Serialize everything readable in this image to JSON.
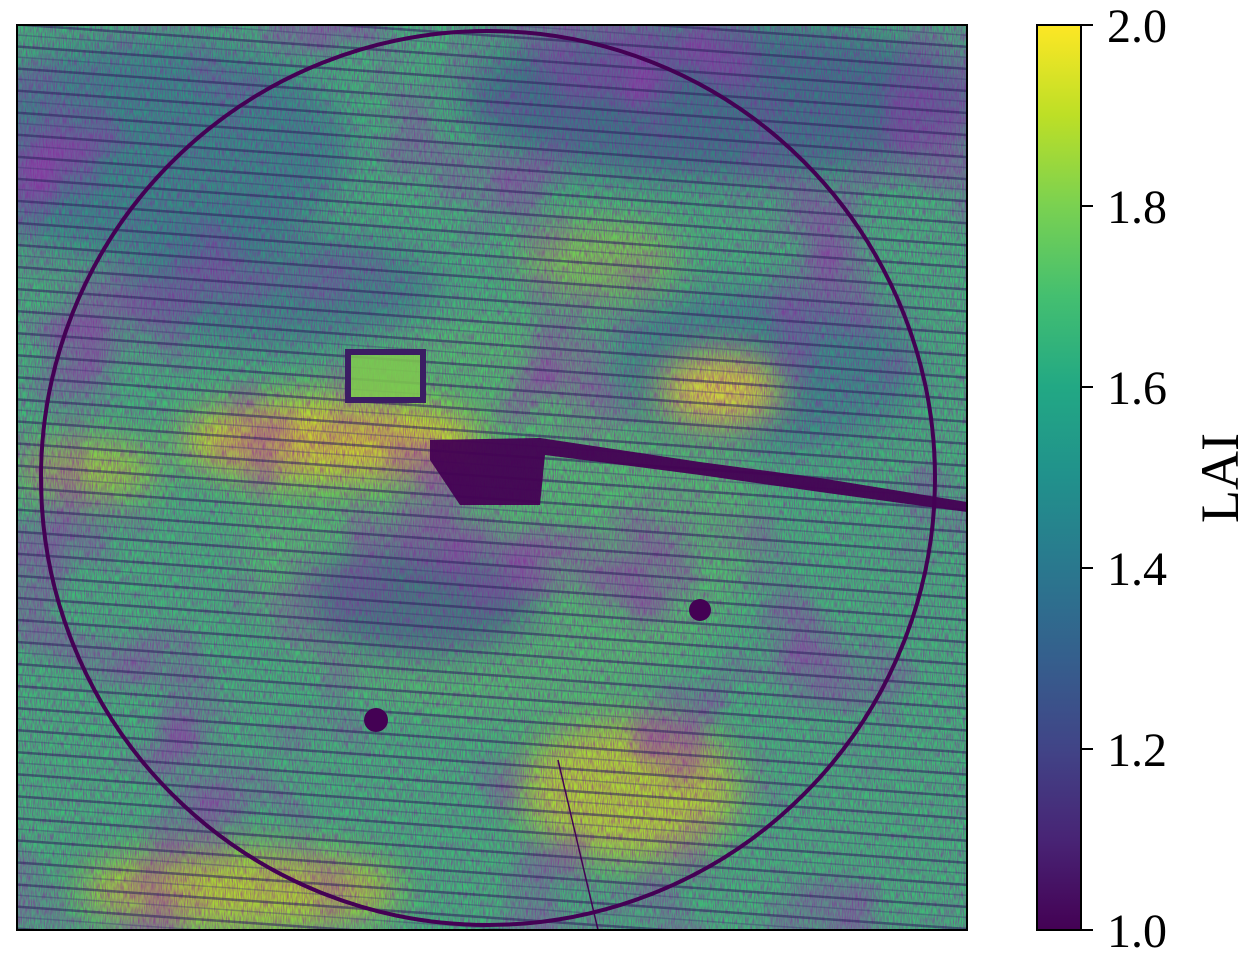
{
  "chart_data": {
    "type": "heatmap",
    "title": "",
    "xlabel": "",
    "ylabel": "",
    "axes_ticks_visible": false,
    "colormap": "viridis",
    "colorbar": {
      "label": "LAI",
      "vmin": 1.0,
      "vmax": 2.0,
      "ticks": [
        1.0,
        1.2,
        1.4,
        1.6,
        1.8,
        2.0
      ],
      "tick_labels": [
        "1.0",
        "1.2",
        "1.4",
        "1.6",
        "1.8",
        "2.0"
      ],
      "placement": "right"
    },
    "features": [
      {
        "name": "field-boundary-circle",
        "value": 1.0
      },
      {
        "name": "dark-channel",
        "value": 1.05
      },
      {
        "name": "dark-spot",
        "value": 1.0
      },
      {
        "name": "dark-spot",
        "value": 1.0
      }
    ],
    "colors": {
      "low": "#440154",
      "mid": "#21918c",
      "high": "#fde725"
    }
  }
}
